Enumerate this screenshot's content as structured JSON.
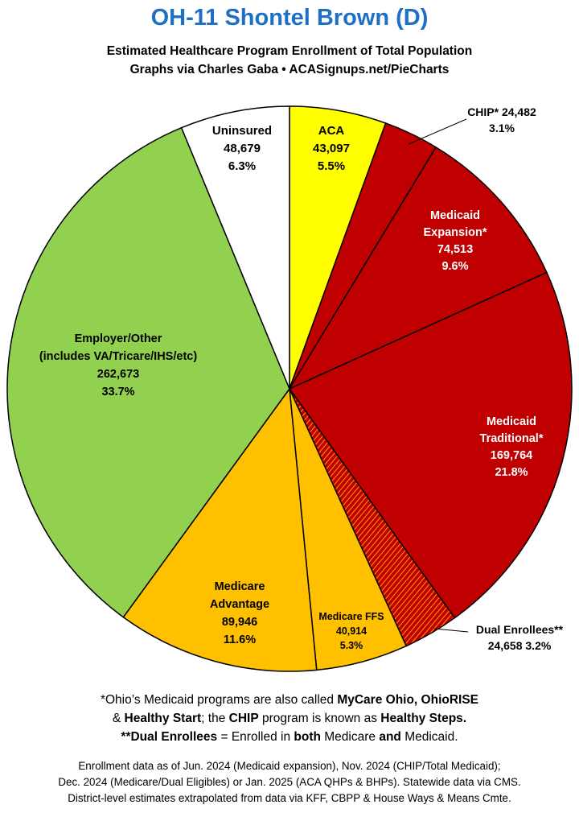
{
  "title": "OH-11 Shontel Brown (D)",
  "subtitle_line1": "Estimated Healthcare Program Enrollment of Total Population",
  "subtitle_line2": "Graphs via Charles Gaba  •  ACASignups.net/PieCharts",
  "chart_data": {
    "type": "pie",
    "start_angle_deg": 0,
    "direction": "clockwise",
    "slices": [
      {
        "name": "ACA",
        "value": 43097,
        "percent": "5.5%",
        "color": "#ffff00",
        "label_lines": [
          "ACA",
          "43,097",
          "5.5%"
        ],
        "label_color": "#000000",
        "label_placement": "inside"
      },
      {
        "name": "CHIP*",
        "value": 24482,
        "percent": "3.1%",
        "color": "#c00000",
        "label_lines": [
          "CHIP* 24,482",
          "3.1%"
        ],
        "label_color": "#000000",
        "label_placement": "outside-callout"
      },
      {
        "name": "Medicaid Expansion*",
        "value": 74513,
        "percent": "9.6%",
        "color": "#c00000",
        "label_lines": [
          "Medicaid",
          "Expansion*",
          "74,513",
          "9.6%"
        ],
        "label_color": "#ffffff",
        "label_placement": "inside"
      },
      {
        "name": "Medicaid Traditional*",
        "value": 169764,
        "percent": "21.8%",
        "color": "#c00000",
        "label_lines": [
          "Medicaid",
          "Traditional*",
          "169,764",
          "21.8%"
        ],
        "label_color": "#ffffff",
        "label_placement": "inside"
      },
      {
        "name": "Dual Enrollees**",
        "value": 24658,
        "percent": "3.2%",
        "color": "#c00000",
        "pattern": "hatched-orange-red",
        "label_lines": [
          "Dual Enrollees**",
          "24,658 3.2%"
        ],
        "label_color": "#000000",
        "label_placement": "outside-callout"
      },
      {
        "name": "Medicare FFS",
        "value": 40914,
        "percent": "5.3%",
        "color": "#ffc000",
        "label_lines": [
          "Medicare FFS",
          "40,914",
          "5.3%"
        ],
        "label_color": "#000000",
        "label_placement": "inside"
      },
      {
        "name": "Medicare Advantage",
        "value": 89946,
        "percent": "11.6%",
        "color": "#ffc000",
        "label_lines": [
          "Medicare",
          "Advantage",
          "89,946",
          "11.6%"
        ],
        "label_color": "#000000",
        "label_placement": "inside"
      },
      {
        "name": "Employer/Other",
        "value": 262673,
        "percent": "33.7%",
        "color": "#92d050",
        "label_lines": [
          "Employer/Other",
          "(includes VA/Tricare/IHS/etc)",
          "262,673",
          "33.7%"
        ],
        "label_color": "#000000",
        "label_placement": "inside"
      },
      {
        "name": "Uninsured",
        "value": 48679,
        "percent": "6.3%",
        "color": "#ffffff",
        "label_lines": [
          "Uninsured",
          "48,679",
          "6.3%"
        ],
        "label_color": "#000000",
        "label_placement": "inside"
      }
    ]
  },
  "footnote": {
    "l1_a": "*Ohio’s Medicaid programs are also called ",
    "l1_b": "MyCare Ohio, OhioRISE",
    "l2_a": "& ",
    "l2_b": "Healthy Start",
    "l2_c": "; the ",
    "l2_d": "CHIP",
    "l2_e": " program is known as ",
    "l2_f": "Healthy Steps.",
    "l3_a": "**Dual Enrollees",
    "l3_b": " = Enrolled in ",
    "l3_c": "both",
    "l3_d": " Medicare ",
    "l3_e": "and",
    "l3_f": " Medicaid."
  },
  "source_lines": [
    "Enrollment data as of Jun. 2024 (Medicaid expansion), Nov. 2024 (CHIP/Total Medicaid);",
    "Dec. 2024 (Medicare/Dual Eligibles) or Jan. 2025 (ACA QHPs & BHPs). Statewide data via CMS.",
    "District-level estimates extrapolated from data via KFF, CBPP & House Ways & Means Cmte."
  ]
}
